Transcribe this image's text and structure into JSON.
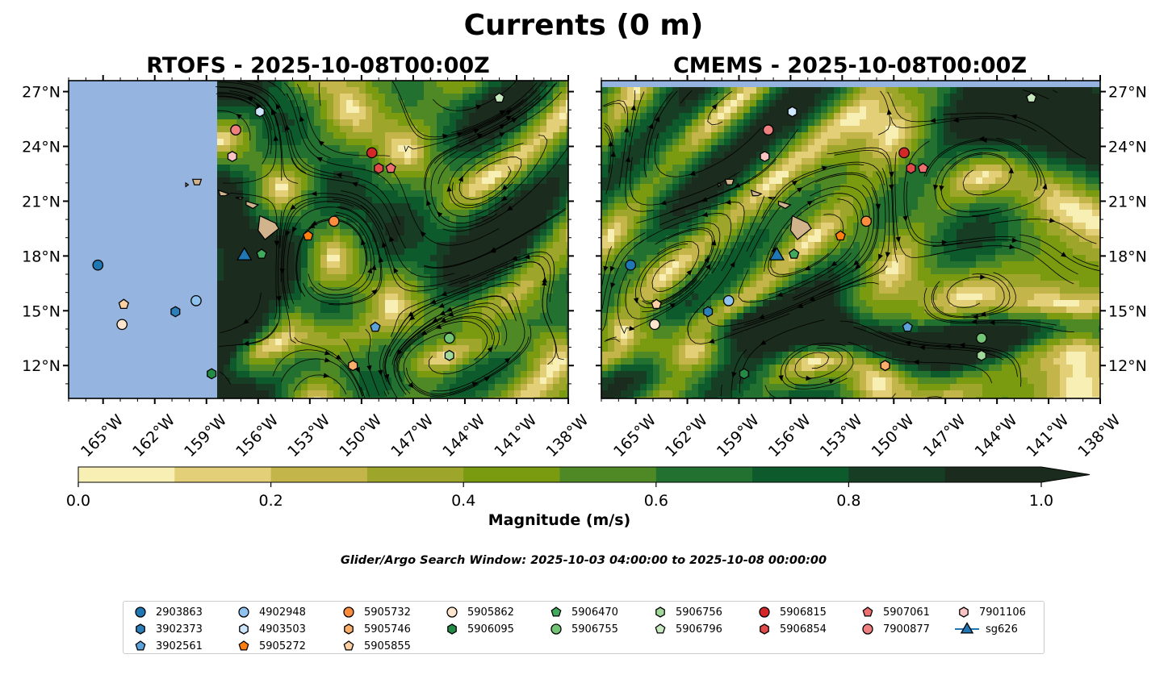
{
  "title": "Currents (0 m)",
  "panels": [
    {
      "title": "RTOFS - 2025-10-08T00:00Z",
      "model": "RTOFS"
    },
    {
      "title": "CMEMS - 2025-10-08T00:00Z",
      "model": "CMEMS"
    }
  ],
  "colors": {
    "ocean_nodata": "#95b4e0",
    "land": "#d2b48c",
    "colormap": [
      "#f7efb4",
      "#e2cf78",
      "#c3b54a",
      "#9da52a",
      "#7a9a10",
      "#4f8925",
      "#237130",
      "#0d5a2c",
      "#173d24",
      "#1b2b1d"
    ]
  },
  "chart_data": {
    "type": "map",
    "xlabel_ticks": [
      "165°W",
      "162°W",
      "159°W",
      "156°W",
      "153°W",
      "150°W",
      "147°W",
      "144°W",
      "141°W",
      "138°W"
    ],
    "ylabel_ticks": [
      "12°N",
      "15°N",
      "18°N",
      "21°N",
      "24°N",
      "27°N"
    ],
    "lon_range": [
      -167,
      -138
    ],
    "lat_range": [
      10.2,
      27.6
    ],
    "colorbar": {
      "label": "Magnitude (m/s)",
      "range": [
        0.0,
        1.0
      ],
      "levels": [
        0.0,
        0.1,
        0.2,
        0.3,
        0.4,
        0.5,
        0.6,
        0.7,
        0.8,
        0.9,
        1.0
      ],
      "ticks": [
        "0.0",
        "0.2",
        "0.4",
        "0.6",
        "0.8",
        "1.0"
      ],
      "extend": "max"
    },
    "search_window": "Glider/Argo Search Window: 2025-10-03 04:00:00 to 2025-10-08 00:00:00",
    "rtofs_data_lon_start": -158.5,
    "platforms": [
      {
        "id": "2903863",
        "marker": "circle",
        "color": "#1f77b4",
        "lon": -165.3,
        "lat": 17.5
      },
      {
        "id": "3902373",
        "marker": "hexagon",
        "color": "#2c7fb8",
        "lon": -160.8,
        "lat": 14.95
      },
      {
        "id": "3902561",
        "marker": "pentagon",
        "color": "#5ba3d9",
        "lon": -149.2,
        "lat": 14.1
      },
      {
        "id": "4902948",
        "marker": "circle",
        "color": "#8ec3ef",
        "lon": -159.6,
        "lat": 15.55
      },
      {
        "id": "4903503",
        "marker": "hexagon",
        "color": "#cde6fb",
        "lon": -155.9,
        "lat": 25.9
      },
      {
        "id": "5905272",
        "marker": "pentagon",
        "color": "#ff7f0e",
        "lon": -153.1,
        "lat": 19.1
      },
      {
        "id": "5905732",
        "marker": "circle",
        "color": "#fd8d3c",
        "lon": -151.6,
        "lat": 19.9
      },
      {
        "id": "5905746",
        "marker": "hexagon",
        "color": "#fdae6b",
        "lon": -150.5,
        "lat": 12.0
      },
      {
        "id": "5905855",
        "marker": "pentagon",
        "color": "#fdd0a2",
        "lon": -163.8,
        "lat": 15.35
      },
      {
        "id": "5905862",
        "marker": "circle",
        "color": "#fee6ce",
        "lon": -163.9,
        "lat": 14.25
      },
      {
        "id": "5906095",
        "marker": "hexagon",
        "color": "#238b45",
        "lon": -158.7,
        "lat": 11.55
      },
      {
        "id": "5906470",
        "marker": "pentagon",
        "color": "#41ab5d",
        "lon": -155.8,
        "lat": 18.1
      },
      {
        "id": "5906755",
        "marker": "circle",
        "color": "#74c476",
        "lon": -144.9,
        "lat": 13.5
      },
      {
        "id": "5906756",
        "marker": "hexagon",
        "color": "#a1d99b",
        "lon": -144.9,
        "lat": 12.55
      },
      {
        "id": "5906796",
        "marker": "pentagon",
        "color": "#c7e9c0",
        "lon": -142.0,
        "lat": 26.65
      },
      {
        "id": "5906815",
        "marker": "circle",
        "color": "#d62728",
        "lon": -149.4,
        "lat": 23.65
      },
      {
        "id": "5906854",
        "marker": "hexagon",
        "color": "#e34a4a",
        "lon": -149.0,
        "lat": 22.8
      },
      {
        "id": "5907061",
        "marker": "pentagon",
        "color": "#ef6f6f",
        "lon": -148.3,
        "lat": 22.8
      },
      {
        "id": "7900877",
        "marker": "circle",
        "color": "#f08080",
        "lon": -157.3,
        "lat": 24.9
      },
      {
        "id": "7901106",
        "marker": "hexagon",
        "color": "#fbc4c4",
        "lon": -157.5,
        "lat": 23.45
      },
      {
        "id": "sg626",
        "marker": "triangle",
        "color": "#1f77b4",
        "lon": -156.8,
        "lat": 18.05
      }
    ],
    "legend_columns": [
      [
        "2903863",
        "3902373",
        "3902561"
      ],
      [
        "4902948",
        "4903503",
        "5905272"
      ],
      [
        "5905732",
        "5905746",
        "5905855"
      ],
      [
        "5905862",
        "5906095"
      ],
      [
        "5906470",
        "5906755"
      ],
      [
        "5906756",
        "5906796"
      ],
      [
        "5906815",
        "5906854"
      ],
      [
        "5907061",
        "7900877"
      ],
      [
        "7901106",
        "sg626"
      ]
    ]
  }
}
